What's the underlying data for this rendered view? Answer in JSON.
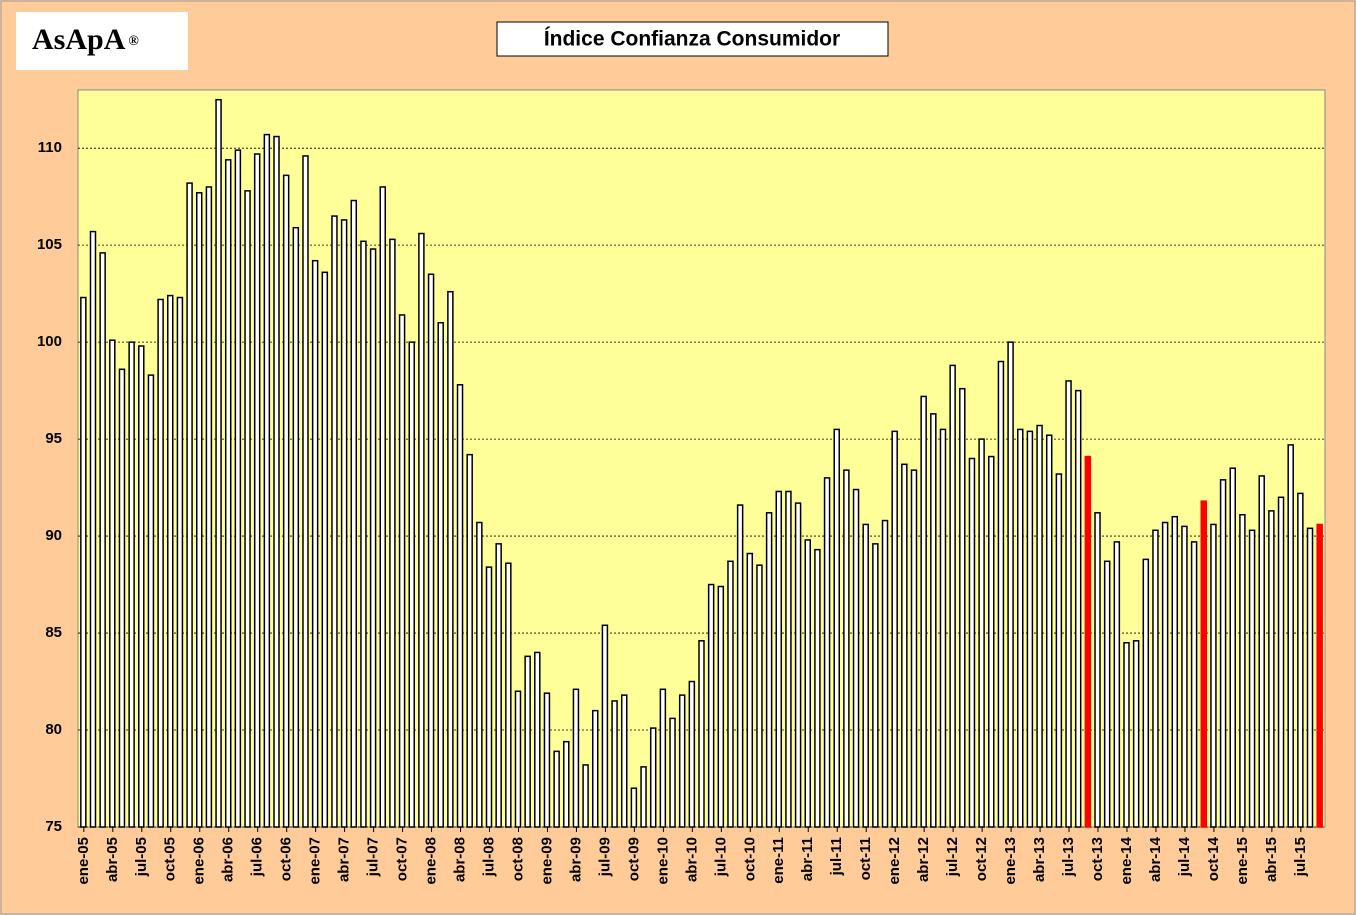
{
  "logo": "AsApA",
  "logo_mark": "®",
  "chart_data": {
    "type": "bar",
    "title": "Índice Confianza Consumidor",
    "categories": [
      "ene-05",
      null,
      null,
      "abr-05",
      null,
      null,
      "jul-05",
      null,
      null,
      "oct-05",
      null,
      null,
      "ene-06",
      null,
      null,
      "abr-06",
      null,
      null,
      "jul-06",
      null,
      null,
      "oct-06",
      null,
      null,
      "ene-07",
      null,
      null,
      "abr-07",
      null,
      null,
      "jul-07",
      null,
      null,
      "oct-07",
      null,
      null,
      "ene-08",
      null,
      null,
      "abr-08",
      null,
      null,
      "jul-08",
      null,
      null,
      "oct-08",
      null,
      null,
      "ene-09",
      null,
      null,
      "abr-09",
      null,
      null,
      "jul-09",
      null,
      null,
      "oct-09",
      null,
      null,
      "ene-10",
      null,
      null,
      "abr-10",
      null,
      null,
      "jul-10",
      null,
      null,
      "oct-10",
      null,
      null,
      "ene-11",
      null,
      null,
      "abr-11",
      null,
      null,
      "jul-11",
      null,
      null,
      "oct-11",
      null,
      null,
      "ene-12",
      null,
      null,
      "abr-12",
      null,
      null,
      "jul-12",
      null,
      null,
      "oct-12",
      null,
      null,
      "ene-13",
      null,
      null,
      "abr-13",
      null,
      null,
      "jul-13",
      null,
      null,
      "oct-13",
      null,
      null,
      "ene-14",
      null,
      null,
      "abr-14",
      null,
      null,
      "jul-14",
      null,
      null,
      "oct-14",
      null,
      null,
      "ene-15",
      null,
      null,
      "abr-15",
      null,
      null,
      "jul-15",
      null,
      null
    ],
    "values": [
      102.3,
      105.7,
      104.6,
      100.1,
      98.6,
      100.0,
      99.8,
      98.3,
      102.2,
      102.4,
      102.3,
      108.2,
      107.7,
      108.0,
      112.5,
      109.4,
      109.9,
      107.8,
      109.7,
      110.7,
      110.6,
      108.6,
      105.9,
      109.6,
      104.2,
      103.6,
      106.5,
      106.3,
      107.3,
      105.2,
      104.8,
      108.0,
      105.3,
      101.4,
      100.0,
      105.6,
      103.5,
      101.0,
      102.6,
      97.8,
      94.2,
      90.7,
      88.4,
      89.6,
      88.6,
      82.0,
      83.8,
      84.0,
      81.9,
      78.9,
      79.4,
      82.1,
      78.2,
      81.0,
      85.4,
      81.5,
      81.8,
      77.0,
      78.1,
      80.1,
      82.1,
      80.6,
      81.8,
      82.5,
      84.6,
      87.5,
      87.4,
      88.7,
      91.6,
      89.1,
      88.5,
      91.2,
      92.3,
      92.3,
      91.7,
      89.8,
      89.3,
      93.0,
      95.5,
      93.4,
      92.4,
      90.6,
      89.6,
      90.8,
      95.4,
      93.7,
      93.4,
      97.2,
      96.3,
      95.5,
      98.8,
      97.6,
      94.0,
      95.0,
      94.1,
      99.0,
      100.0,
      95.5,
      95.4,
      95.7,
      95.2,
      93.2,
      98.0,
      97.5,
      94.1,
      91.2,
      88.7,
      89.7,
      84.5,
      84.6,
      88.8,
      90.3,
      90.7,
      91.0,
      90.5,
      89.7,
      91.8,
      90.6,
      92.9,
      93.5,
      91.1,
      90.3,
      93.1,
      91.3,
      92.0,
      94.7,
      92.2,
      90.4,
      90.6
    ],
    "colors": [
      "#ffffff",
      "#ffffff",
      "#ffffff",
      "#ffffff",
      "#ffffff",
      "#ffffff",
      "#ffffff",
      "#ffffff",
      "#ffffff",
      "#ffffff",
      "#ffffff",
      "#ffffff",
      "#ffffff",
      "#ffffff",
      "#ffffff",
      "#ffffff",
      "#ffffff",
      "#ffffff",
      "#ffffff",
      "#ffffff",
      "#ffffff",
      "#ffffff",
      "#ffffff",
      "#ffffff",
      "#ffffff",
      "#ffffff",
      "#ffffff",
      "#ffffff",
      "#ffffff",
      "#ffffff",
      "#ffffff",
      "#ffffff",
      "#ffffff",
      "#ffffff",
      "#ffffff",
      "#ffffff",
      "#ffffff",
      "#ffffff",
      "#ffffff",
      "#ffffff",
      "#ffffff",
      "#ffffff",
      "#ffffff",
      "#ffffff",
      "#ffffff",
      "#ffffff",
      "#ffffff",
      "#ffffff",
      "#ffffff",
      "#ffffff",
      "#ffffff",
      "#ffffff",
      "#ffffff",
      "#ffffff",
      "#ffffff",
      "#ffffff",
      "#ffffff",
      "#ffffff",
      "#ffffff",
      "#ffffff",
      "#ffffff",
      "#ffffff",
      "#ffffff",
      "#ffffff",
      "#ffffff",
      "#ffffff",
      "#ffffff",
      "#ffffff",
      "#ffffff",
      "#ffffff",
      "#ffffff",
      "#ffffff",
      "#ffffff",
      "#ffffff",
      "#ffffff",
      "#ffffff",
      "#ffffff",
      "#ffffff",
      "#ffffff",
      "#ffffff",
      "#ffffff",
      "#ffffff",
      "#ffffff",
      "#ffffff",
      "#ffffff",
      "#ffffff",
      "#ffffff",
      "#ffffff",
      "#ffffff",
      "#ffffff",
      "#ffffff",
      "#ffffff",
      "#ffffff",
      "#ffffff",
      "#ffffff",
      "#ffffff",
      "#ffffff",
      "#ffffff",
      "#ffffff",
      "#ffffff",
      "#ffffff",
      "#ffffff",
      "#ffffff",
      "#ffffff",
      "#ff0000",
      "#ffffff",
      "#ffffff",
      "#ffffff",
      "#ffffff",
      "#ffffff",
      "#ffffff",
      "#ffffff",
      "#ffffff",
      "#ffffff",
      "#ffffff",
      "#ffffff",
      "#ff0000",
      "#ffffff",
      "#ffffff",
      "#ffffff",
      "#ffffff",
      "#ffffff",
      "#ffffff",
      "#ffffff",
      "#ffffff",
      "#ffffff",
      "#ffffff",
      "#ffffff",
      "#ff0000"
    ],
    "ylim": [
      75,
      113
    ],
    "yticks": [
      75,
      80,
      85,
      90,
      95,
      100,
      105,
      110
    ],
    "grid": true
  }
}
